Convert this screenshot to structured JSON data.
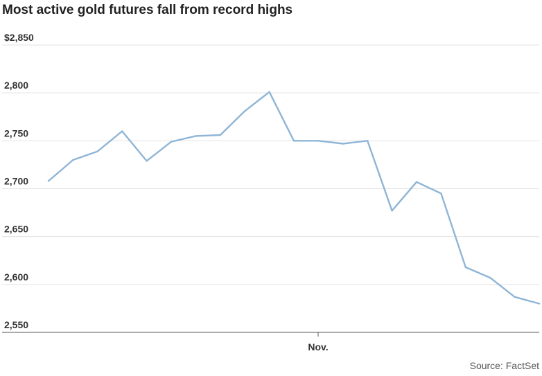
{
  "chart_data": {
    "type": "line",
    "title": "Most active gold futures fall from record highs",
    "xlabel": "",
    "ylabel": "",
    "x_tick_labels": [
      "Nov."
    ],
    "y_tick_labels": [
      "$2,850",
      "2,800",
      "2,750",
      "2,700",
      "2,650",
      "2,600",
      "2,550"
    ],
    "y_ticks": [
      2850,
      2800,
      2750,
      2700,
      2650,
      2600,
      2550
    ],
    "ylim": [
      2550,
      2850
    ],
    "grid": true,
    "series": [
      {
        "color": "#8fb5d6",
        "values": [
          2708,
          2730,
          2739,
          2760,
          2729,
          2749,
          2755,
          2756,
          2781,
          2801,
          2750,
          2750,
          2747,
          2750,
          2677,
          2707,
          2695,
          2618,
          2607,
          2587,
          2580
        ]
      }
    ],
    "source": "Source: FactSet"
  }
}
